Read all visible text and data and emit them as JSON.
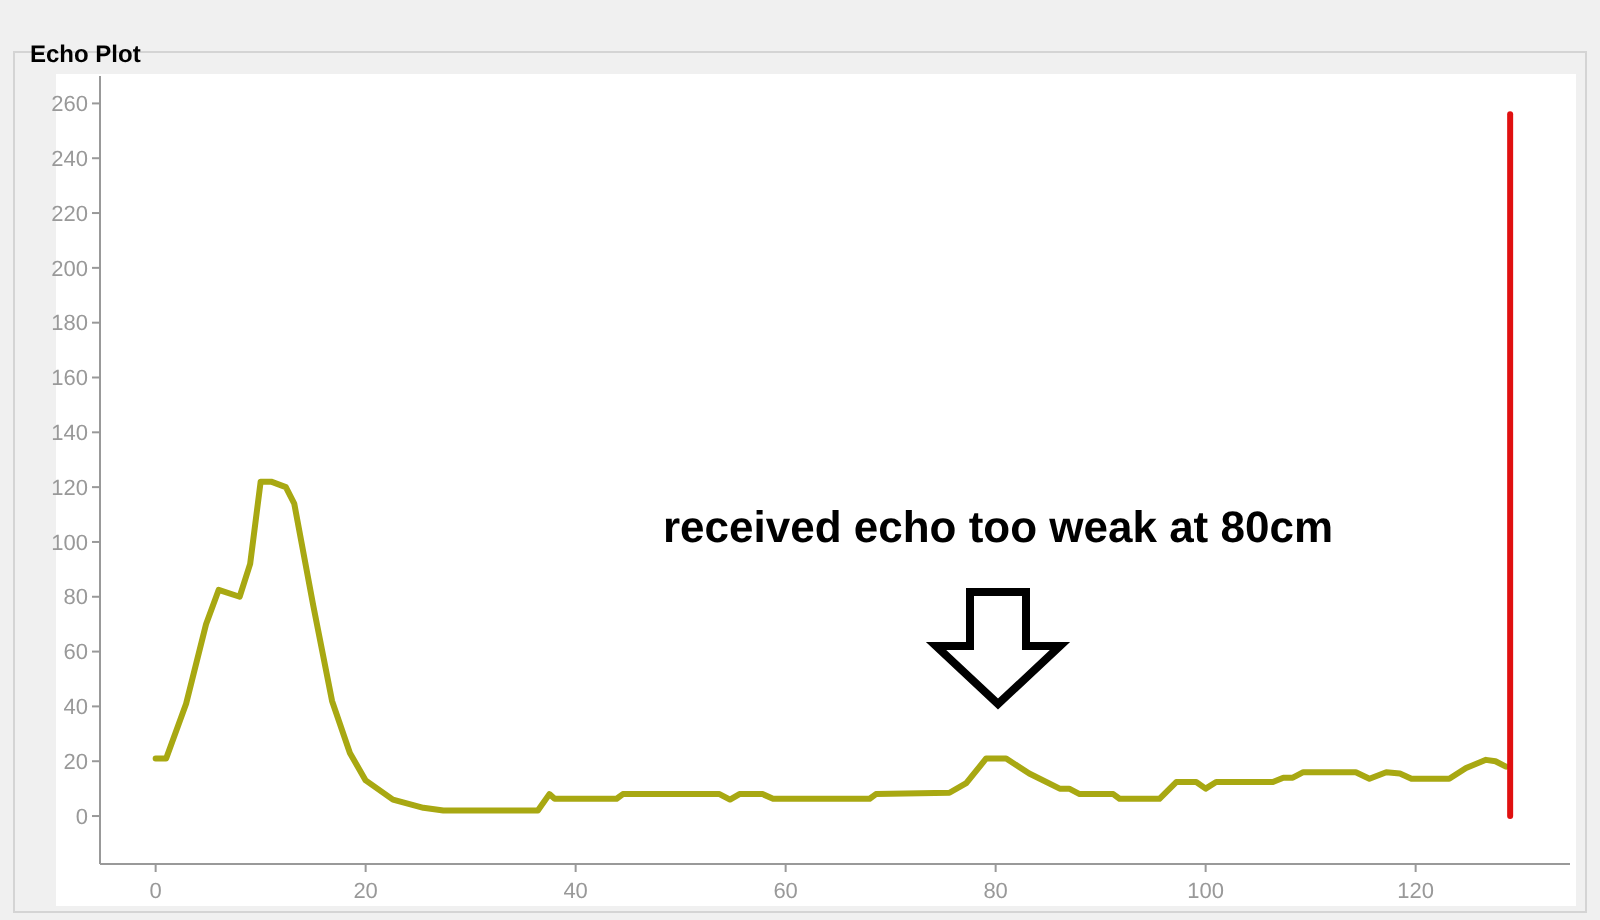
{
  "chart_data": {
    "type": "line",
    "title": "Echo Plot",
    "xlim": [
      -5.3,
      134.7
    ],
    "ylim": [
      -17.5,
      270
    ],
    "xticks": [
      0,
      20,
      40,
      60,
      80,
      100,
      120
    ],
    "yticks": [
      0,
      20,
      40,
      60,
      80,
      100,
      120,
      140,
      160,
      180,
      200,
      220,
      240,
      260
    ],
    "grid": false,
    "annotations": [
      "received echo too weak at 80cm"
    ],
    "series": [
      {
        "color": "#a8a812",
        "x": [
          0,
          1,
          2.9,
          4.8,
          6,
          8,
          9,
          10,
          11,
          12.4,
          13.2,
          15,
          16.8,
          18.5,
          20,
          22.6,
          25.5,
          27.4,
          36.4,
          37.5,
          38,
          43.9,
          44.5,
          53.7,
          54.7,
          55.6,
          57.8,
          58.8,
          68,
          68.6,
          75.6,
          77.2,
          79.1,
          81,
          83.2,
          86.1,
          87,
          88,
          91.2,
          91.8,
          95.6,
          97.2,
          99.1,
          100,
          101,
          106.4,
          107.4,
          108.3,
          109.3,
          114.3,
          115.6,
          117.2,
          118.5,
          119.6,
          123.2,
          124.8,
          126.7,
          127.6,
          128.6
        ],
        "values": [
          21,
          21,
          41,
          70,
          82.5,
          80,
          92,
          122,
          122,
          120,
          114,
          77,
          42,
          23,
          13,
          6,
          3,
          2,
          2,
          8,
          6.3,
          6.3,
          8,
          8,
          6,
          8,
          8,
          6.3,
          6.3,
          8,
          8.5,
          12,
          21,
          21,
          15.5,
          10,
          10,
          8,
          8,
          6.3,
          6.3,
          12.4,
          12.4,
          10,
          12.4,
          12.4,
          14,
          14,
          16,
          16,
          13.6,
          16,
          15.5,
          13.6,
          13.6,
          17.5,
          20.5,
          20,
          18
        ]
      },
      {
        "color": "#e01010",
        "x": [
          129,
          129
        ],
        "values": [
          0,
          256
        ]
      }
    ]
  }
}
